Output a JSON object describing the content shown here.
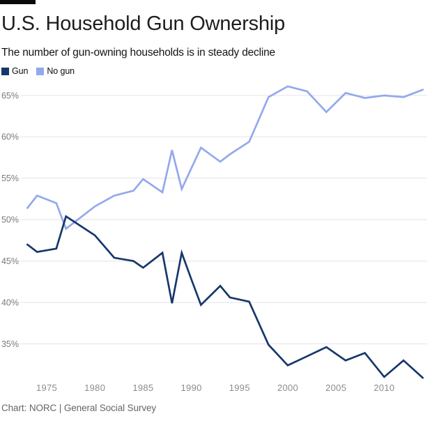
{
  "header": {
    "title": "U.S. Household Gun Ownership",
    "subtitle": "The number of gun-owning households is in steady decline"
  },
  "chart_data": {
    "type": "line",
    "x": [
      1973,
      1974,
      1976,
      1977,
      1980,
      1982,
      1984,
      1985,
      1987,
      1988,
      1989,
      1990,
      1991,
      1993,
      1994,
      1996,
      1998,
      2000,
      2002,
      2004,
      2006,
      2008,
      2010,
      2012,
      2014
    ],
    "series": [
      {
        "name": "Gun",
        "color": "#16376b",
        "values": [
          47.0,
          46.1,
          46.5,
          50.4,
          48.1,
          45.4,
          45.0,
          44.2,
          46.0,
          39.9,
          46.0,
          42.8,
          39.7,
          42.0,
          40.6,
          40.1,
          34.9,
          32.4,
          33.5,
          34.6,
          33.0,
          33.9,
          31.0,
          33.0,
          30.9
        ]
      },
      {
        "name": "No gun",
        "color": "#93a9ec",
        "values": [
          51.4,
          52.9,
          52.0,
          48.9,
          51.6,
          52.9,
          53.5,
          54.9,
          53.3,
          58.4,
          53.7,
          56.2,
          58.7,
          57.0,
          57.9,
          59.4,
          64.8,
          66.1,
          65.5,
          63.0,
          65.3,
          64.7,
          65.0,
          64.8,
          65.7
        ]
      }
    ],
    "xlim": [
      1973,
      2014
    ],
    "ylim": [
      35,
      65
    ],
    "y_ticks": [
      "65%",
      "60%",
      "55%",
      "50%",
      "45%",
      "40%",
      "35%"
    ],
    "y_tick_values": [
      65,
      60,
      55,
      50,
      45,
      40,
      35
    ],
    "x_ticks": [
      "1975",
      "1980",
      "1985",
      "1990",
      "1995",
      "2000",
      "2005",
      "2010"
    ],
    "x_tick_values": [
      1975,
      1980,
      1985,
      1990,
      1995,
      2000,
      2005,
      2010
    ],
    "grid": "horizontal",
    "legend_position": "top-left",
    "title": "U.S. Household Gun Ownership",
    "xlabel": "",
    "ylabel": ""
  },
  "colors": {
    "gridline": "#e4e4e4",
    "y_axis_label": "#7a7a7a",
    "x_axis_label": "#8c8c8c"
  },
  "footer": {
    "credit": "Chart: NORC | General Social Survey"
  }
}
